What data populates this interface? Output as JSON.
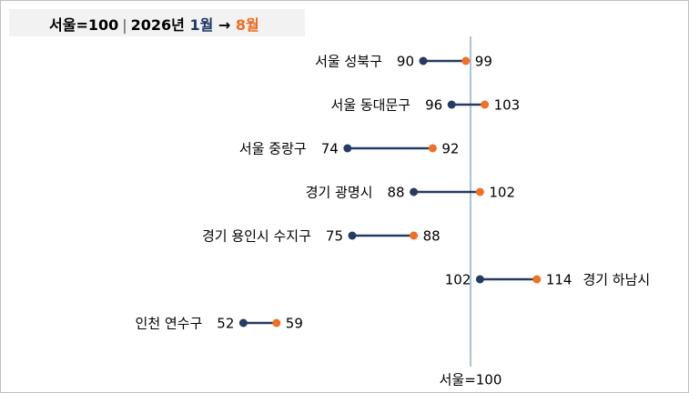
{
  "title": {
    "base": "서울=100",
    "separator": "|",
    "period_prefix": "2026년",
    "from": "1월",
    "arrow": "→",
    "to": "8월"
  },
  "colors": {
    "start": "#243b63",
    "end": "#f07024",
    "line": "#243b63",
    "reference": "#8eaecb"
  },
  "chart_data": {
    "type": "dumbbell",
    "reference": {
      "value": 100,
      "label": "서울=100"
    },
    "series": [
      {
        "name": "1월"
      },
      {
        "name": "8월"
      }
    ],
    "rows": [
      {
        "region": "서울 성북구",
        "start": 90,
        "end": 99
      },
      {
        "region": "서울 동대문구",
        "start": 96,
        "end": 103
      },
      {
        "region": "서울 중랑구",
        "start": 74,
        "end": 92
      },
      {
        "region": "경기 광명시",
        "start": 88,
        "end": 102
      },
      {
        "region": "경기 용인시 수지구",
        "start": 75,
        "end": 88
      },
      {
        "region": "경기 하남시",
        "start": 102,
        "end": 114
      },
      {
        "region": "인천 연수구",
        "start": 52,
        "end": 59
      }
    ]
  }
}
